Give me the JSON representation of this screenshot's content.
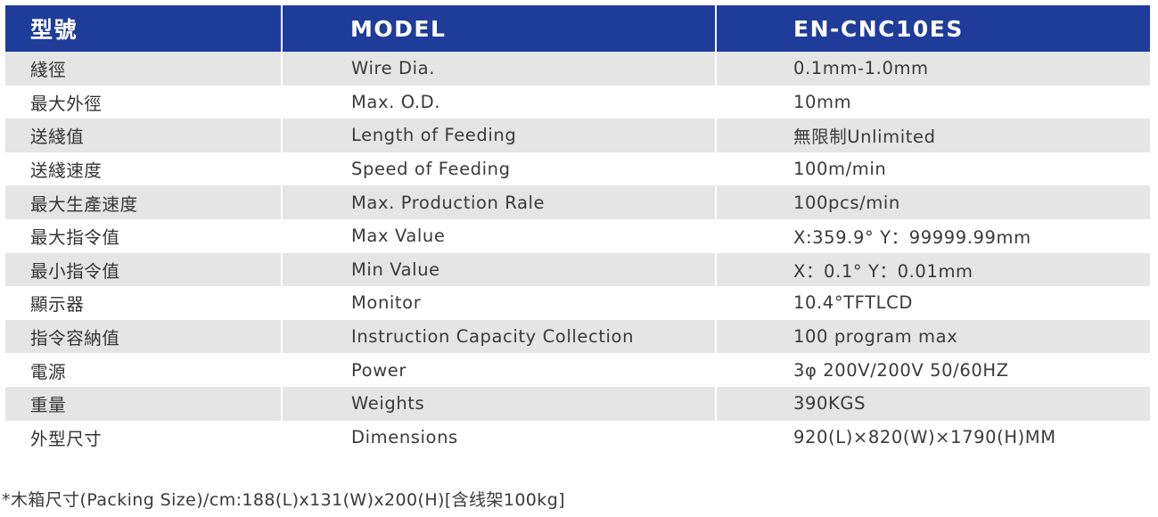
{
  "header": {
    "label_zh": "型號",
    "label_en": "MODEL",
    "model": "EN-CNC10ES"
  },
  "colors": {
    "header_bg": "#1f3c9a",
    "header_text": "#ffffff",
    "shaded_row": "#e5e5e5",
    "text": "#3a3a3a"
  },
  "rows": [
    {
      "zh": "綫徑",
      "en": "Wire Dia.",
      "value": "0.1mm-1.0mm"
    },
    {
      "zh": "最大外徑",
      "en": "Max. O.D.",
      "value": "10mm"
    },
    {
      "zh": "送綫值",
      "en": "Length of Feeding",
      "value": "無限制Unlimited"
    },
    {
      "zh": "送綫速度",
      "en": "Speed of Feeding",
      "value": "100m/min"
    },
    {
      "zh": "最大生產速度",
      "en": "Max. Production Rale",
      "value": "100pcs/min"
    },
    {
      "zh": "最大指令值",
      "en": "Max Value",
      "value": "X:359.9° Y：99999.99mm"
    },
    {
      "zh": "最小指令值",
      "en": "Min Value",
      "value": "X：0.1° Y：0.01mm"
    },
    {
      "zh": "顯示器",
      "en": "Monitor",
      "value": "10.4°TFTLCD"
    },
    {
      "zh": "指令容納值",
      "en": "Instruction Capacity Collection",
      "value": "100 program max"
    },
    {
      "zh": "電源",
      "en": "Power",
      "value": "3φ 200V/200V 50/60HZ"
    },
    {
      "zh": "重量",
      "en": "Weights",
      "value": "390KGS"
    },
    {
      "zh": "外型尺寸",
      "en": "Dimensions",
      "value": "920(L)×820(W)×1790(H)MM"
    }
  ],
  "footnote": "*木箱尺寸(Packing Size)/cm:188(L)x131(W)x200(H)[含线架100kg]"
}
